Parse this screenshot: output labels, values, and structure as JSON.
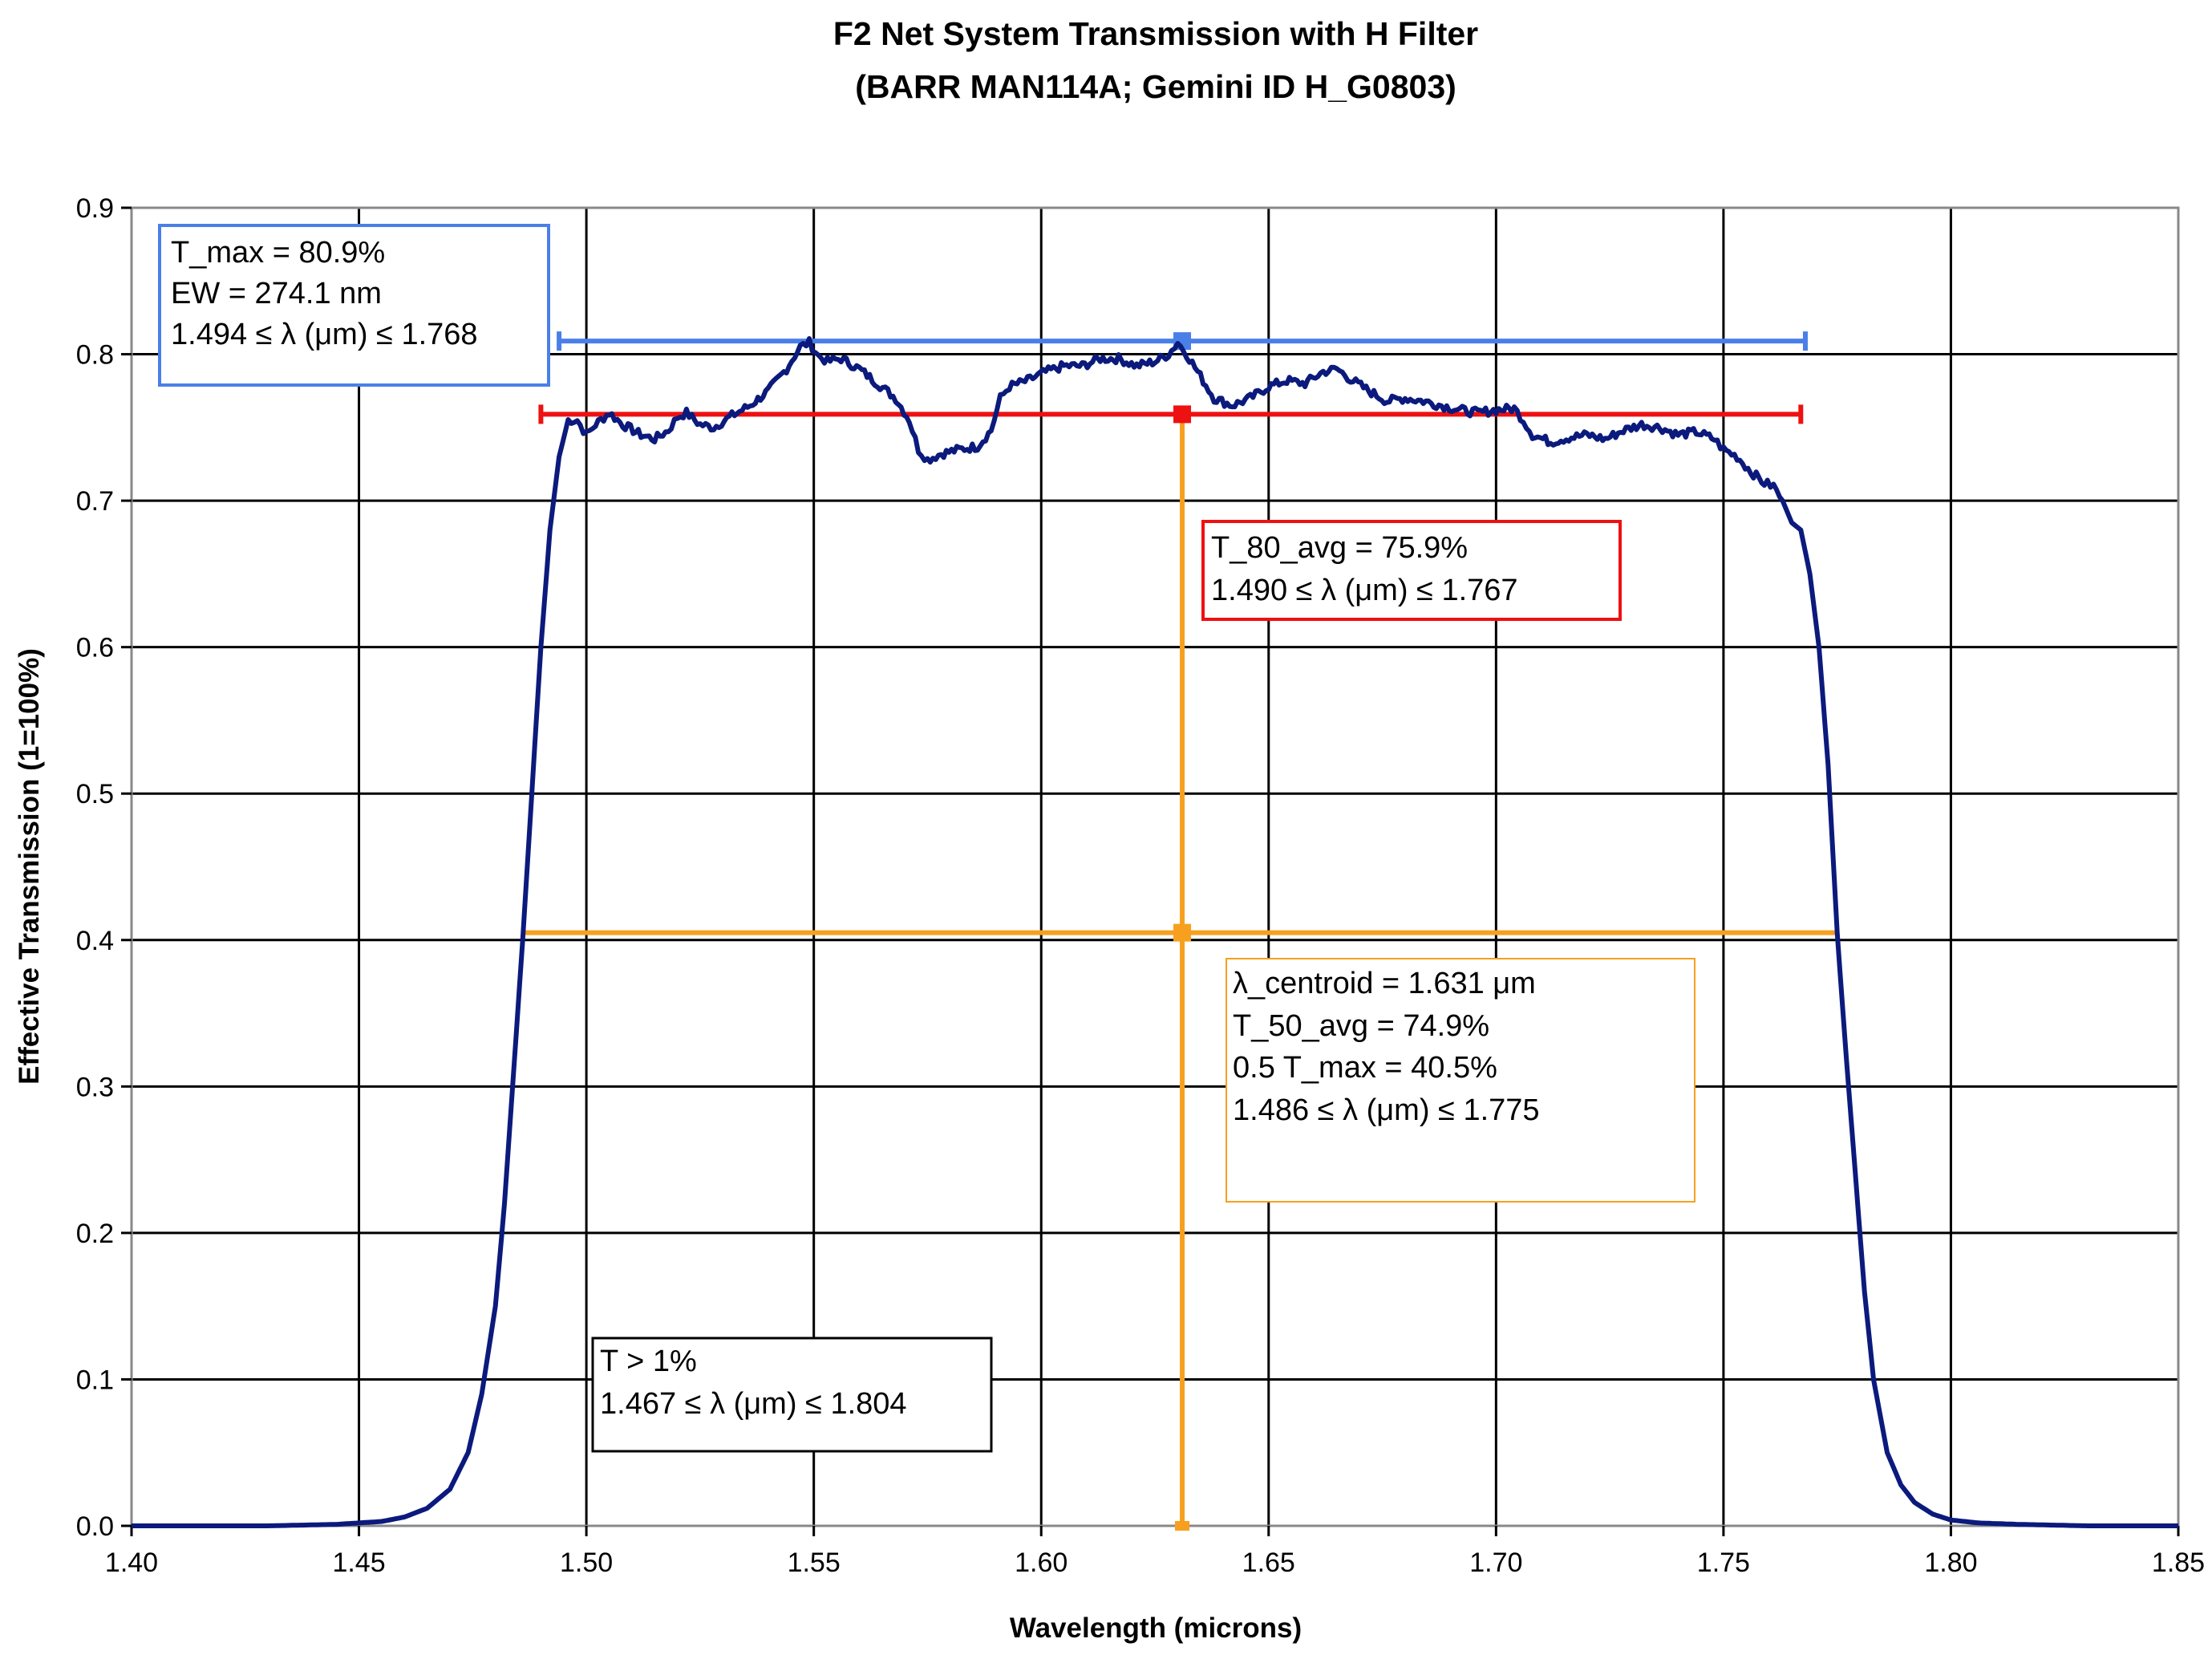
{
  "chart_data": {
    "type": "line",
    "title": "F2 Net System Transmission with H Filter",
    "subtitle": "(BARR MAN114A; Gemini ID H_G0803)",
    "xlabel": "Wavelength (microns)",
    "ylabel": "Effective Transmission (1=100%)",
    "xlim": [
      1.4,
      1.85
    ],
    "ylim": [
      0.0,
      0.9
    ],
    "grid": true,
    "x_ticks": [
      "1.40",
      "1.45",
      "1.50",
      "1.55",
      "1.60",
      "1.65",
      "1.70",
      "1.75",
      "1.80",
      "1.85"
    ],
    "y_ticks": [
      "0.0",
      "0.1",
      "0.2",
      "0.3",
      "0.4",
      "0.5",
      "0.6",
      "0.7",
      "0.8",
      "0.9"
    ],
    "series": [
      {
        "color": "#0b1a7c",
        "x": [
          1.4,
          1.43,
          1.445,
          1.455,
          1.46,
          1.465,
          1.47,
          1.474,
          1.477,
          1.48,
          1.482,
          1.484,
          1.486,
          1.488,
          1.49,
          1.492,
          1.494,
          1.496,
          1.498,
          1.5,
          1.502,
          1.505,
          1.508,
          1.512,
          1.515,
          1.518,
          1.52,
          1.522,
          1.525,
          1.528,
          1.532,
          1.536,
          1.54,
          1.544,
          1.547,
          1.549,
          1.551,
          1.553,
          1.556,
          1.56,
          1.564,
          1.568,
          1.571,
          1.573,
          1.575,
          1.578,
          1.582,
          1.586,
          1.589,
          1.591,
          1.593,
          1.597,
          1.601,
          1.605,
          1.609,
          1.613,
          1.617,
          1.621,
          1.625,
          1.628,
          1.63,
          1.632,
          1.635,
          1.638,
          1.642,
          1.646,
          1.65,
          1.654,
          1.658,
          1.662,
          1.665,
          1.668,
          1.672,
          1.676,
          1.68,
          1.684,
          1.688,
          1.692,
          1.696,
          1.7,
          1.704,
          1.706,
          1.708,
          1.712,
          1.716,
          1.72,
          1.724,
          1.728,
          1.732,
          1.736,
          1.74,
          1.744,
          1.748,
          1.75,
          1.753,
          1.756,
          1.759,
          1.761,
          1.763,
          1.765,
          1.767,
          1.769,
          1.771,
          1.773,
          1.775,
          1.777,
          1.779,
          1.781,
          1.783,
          1.786,
          1.789,
          1.792,
          1.796,
          1.8,
          1.806,
          1.815,
          1.83,
          1.85
        ],
        "y": [
          0.0,
          0.0,
          0.001,
          0.003,
          0.006,
          0.012,
          0.025,
          0.05,
          0.09,
          0.15,
          0.22,
          0.31,
          0.4,
          0.5,
          0.6,
          0.68,
          0.73,
          0.755,
          0.755,
          0.745,
          0.752,
          0.76,
          0.752,
          0.745,
          0.742,
          0.748,
          0.757,
          0.76,
          0.752,
          0.75,
          0.758,
          0.765,
          0.775,
          0.79,
          0.805,
          0.808,
          0.799,
          0.795,
          0.797,
          0.79,
          0.78,
          0.77,
          0.755,
          0.735,
          0.728,
          0.732,
          0.735,
          0.737,
          0.748,
          0.77,
          0.778,
          0.782,
          0.788,
          0.792,
          0.792,
          0.797,
          0.797,
          0.792,
          0.795,
          0.8,
          0.808,
          0.8,
          0.785,
          0.77,
          0.765,
          0.77,
          0.778,
          0.782,
          0.78,
          0.788,
          0.79,
          0.783,
          0.775,
          0.768,
          0.77,
          0.768,
          0.765,
          0.762,
          0.76,
          0.762,
          0.763,
          0.755,
          0.745,
          0.74,
          0.743,
          0.745,
          0.742,
          0.748,
          0.752,
          0.75,
          0.745,
          0.747,
          0.742,
          0.735,
          0.73,
          0.72,
          0.712,
          0.71,
          0.7,
          0.685,
          0.68,
          0.65,
          0.6,
          0.52,
          0.405,
          0.32,
          0.24,
          0.16,
          0.1,
          0.05,
          0.028,
          0.016,
          0.008,
          0.004,
          0.002,
          0.001,
          0.0,
          0.0
        ]
      }
    ],
    "annotations": [
      {
        "color": "#4a7fe8",
        "lines": [
          "T_max = 80.9%",
          "EW = 274.1 nm",
          "1.494 ≤ λ (μm) ≤ 1.768"
        ],
        "marker_x": 1.631,
        "range": [
          1.494,
          1.768
        ],
        "y": 0.809
      },
      {
        "color": "#ee1111",
        "lines": [
          "T_80_avg = 75.9%",
          "1.490 ≤ λ (μm) ≤ 1.767"
        ],
        "marker_x": 1.631,
        "range": [
          1.49,
          1.767
        ],
        "y": 0.759
      },
      {
        "color": "#f7a01f",
        "lines": [
          "λ_centroid = 1.631 μm",
          "T_50_avg = 74.9%",
          "0.5 T_max = 40.5%",
          "1.486 ≤ λ (μm) ≤ 1.775"
        ],
        "marker_x": 1.631,
        "range": [
          1.486,
          1.775
        ],
        "y": 0.405,
        "vertical_range": [
          0.0,
          0.759
        ]
      },
      {
        "color": "#000000",
        "lines": [
          "T > 1%",
          "1.467 ≤ λ (μm) ≤ 1.804"
        ]
      }
    ]
  }
}
